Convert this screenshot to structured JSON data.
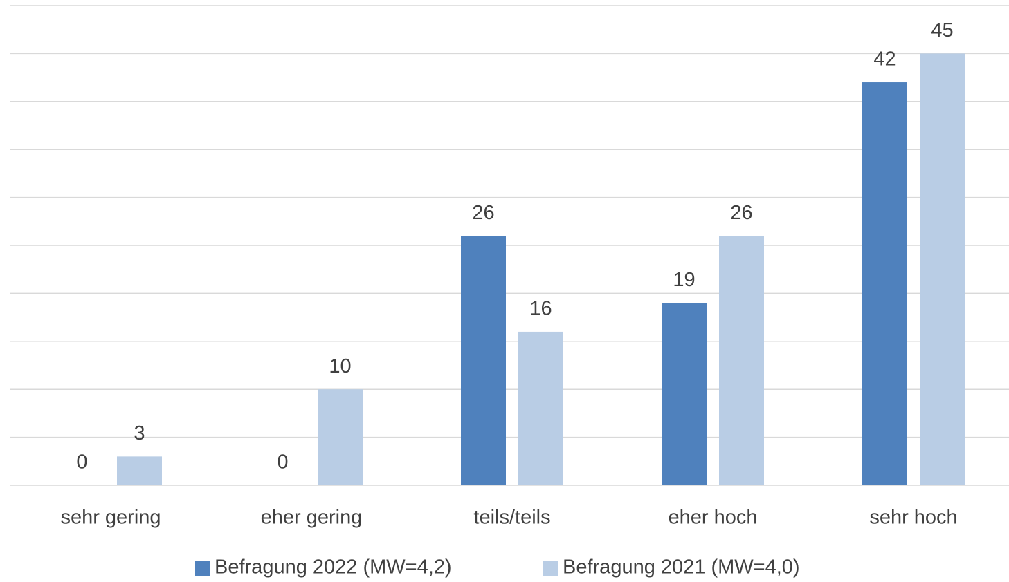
{
  "chart_data": {
    "type": "bar",
    "categories": [
      "sehr gering",
      "eher gering",
      "teils/teils",
      "eher hoch",
      "sehr hoch"
    ],
    "series": [
      {
        "name": "Befragung 2022 (MW=4,2)",
        "color": "#4f81bd",
        "values": [
          0,
          0,
          26,
          19,
          42
        ]
      },
      {
        "name": "Befragung 2021 (MW=4,0)",
        "color": "#b9cde5",
        "values": [
          3,
          10,
          16,
          26,
          45
        ]
      }
    ],
    "ylim": [
      0,
      50
    ],
    "yticks": [
      0,
      5,
      10,
      15,
      20,
      25,
      30,
      35,
      40,
      45,
      50
    ],
    "grid": true,
    "legend": "bottom"
  }
}
